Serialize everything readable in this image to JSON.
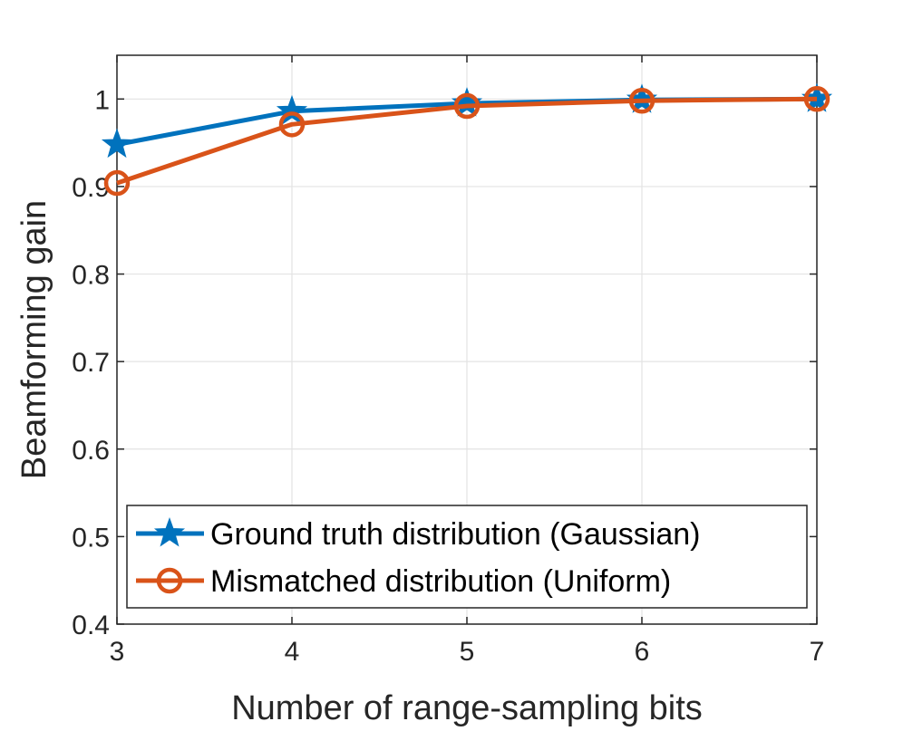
{
  "chart_data": {
    "type": "line",
    "x": [
      3,
      4,
      5,
      6,
      7
    ],
    "xlabel": "Number of range-sampling bits",
    "ylabel": "Beamforming gain",
    "xlim": [
      3,
      7
    ],
    "ylim": [
      0.4,
      1.05
    ],
    "xticks": [
      "3",
      "4",
      "5",
      "6",
      "7"
    ],
    "yticks": [
      "0.4",
      "0.5",
      "0.6",
      "0.7",
      "0.8",
      "0.9",
      "1"
    ],
    "grid": true,
    "legend_position": "bottom-left",
    "series": [
      {
        "name": "Ground truth distribution (Gaussian)",
        "values": [
          0.948,
          0.986,
          0.995,
          0.999,
          1.0
        ],
        "color": "#0072BD",
        "marker": "star"
      },
      {
        "name": "Mismatched distribution (Uniform)",
        "values": [
          0.904,
          0.971,
          0.992,
          0.998,
          1.0
        ],
        "color": "#D95319",
        "marker": "circle"
      }
    ]
  }
}
